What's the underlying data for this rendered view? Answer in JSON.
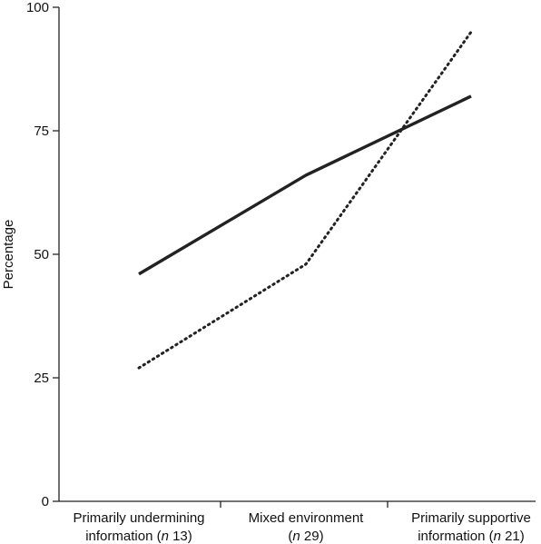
{
  "chart_data": {
    "type": "line",
    "title": "",
    "ylabel": "Percentage",
    "xlabel": "",
    "ylim": [
      0,
      100
    ],
    "yticks": [
      0,
      25,
      50,
      75,
      100
    ],
    "categories": [
      {
        "line1": "Primarily undermining",
        "line2_pre": "information (",
        "n_label": "n",
        "n_value": "13",
        "line2_post": ")"
      },
      {
        "line1": "Mixed environment",
        "line2_pre": "(",
        "n_label": "n",
        "n_value": "29",
        "line2_post": ")"
      },
      {
        "line1": "Primarily supportive",
        "line2_pre": "information (",
        "n_label": "n",
        "n_value": "21",
        "line2_post": ")"
      }
    ],
    "series": [
      {
        "style": "solid",
        "color": "#222222",
        "values": [
          46,
          66,
          82
        ]
      },
      {
        "style": "dotted",
        "color": "#222222",
        "values": [
          27,
          48,
          95
        ]
      }
    ],
    "grid": false,
    "legend": "none"
  }
}
